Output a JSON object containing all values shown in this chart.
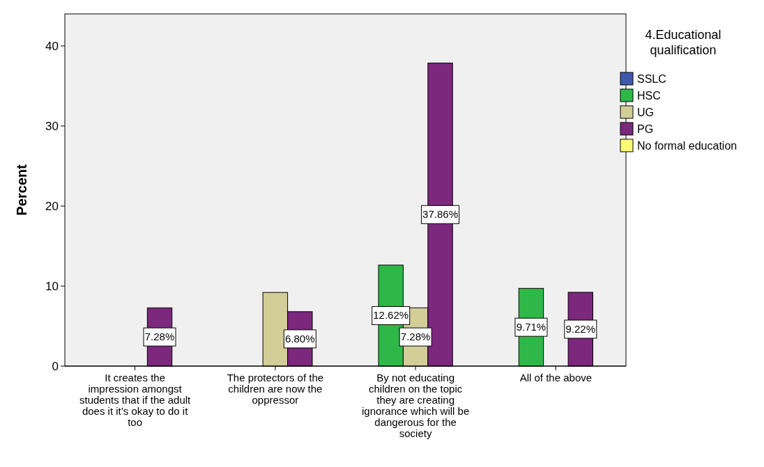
{
  "chart_data": {
    "type": "bar",
    "ylabel": "Percent",
    "legend_title": "4.Educational qualification",
    "legend": "right",
    "grid": false,
    "categories": [
      "It creates the impression amongst students that if the adult does it it’s okay to do it too",
      "The protectors of the children are now the oppressor",
      "By not educating children on the topic they are creating ignorance which will be dangerous for the society",
      "All of the above"
    ],
    "ylim": [
      0,
      44
    ],
    "yticks": [
      0,
      10,
      20,
      30,
      40
    ],
    "series": [
      {
        "name": "SSLC",
        "color": "#3e58ac",
        "values": [
          null,
          null,
          null,
          null
        ]
      },
      {
        "name": "HSC",
        "color": "#2eb848",
        "values": [
          null,
          null,
          12.62,
          9.71
        ],
        "value_labels": [
          null,
          null,
          "12.62%",
          "9.71%"
        ]
      },
      {
        "name": "UG",
        "color": "#d3ce97",
        "values": [
          null,
          9.2,
          7.28,
          null
        ],
        "value_labels": [
          null,
          null,
          "7.28%",
          null
        ]
      },
      {
        "name": "PG",
        "color": "#7b287d",
        "values": [
          7.28,
          6.8,
          37.86,
          9.22
        ],
        "value_labels": [
          "7.28%",
          "6.80%",
          "37.86%",
          "9.22%"
        ]
      },
      {
        "name": "No formal education",
        "color": "#fbf873",
        "values": [
          null,
          null,
          null,
          null
        ]
      }
    ]
  }
}
